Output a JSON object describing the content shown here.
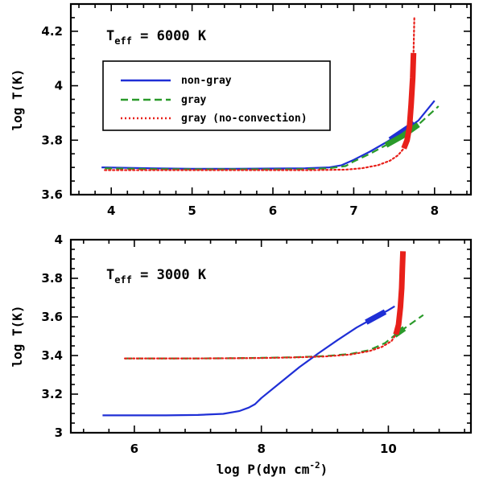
{
  "chart_data": [
    {
      "type": "line",
      "panel": "top",
      "title_main": "T",
      "title_sub": "eff",
      "title_rest": " = 6000 K",
      "xlabel": "",
      "ylabel": "log T(K)",
      "xlim": [
        3.5,
        8.45
      ],
      "ylim": [
        3.6,
        4.3
      ],
      "xticks": [
        4,
        5,
        6,
        7,
        8
      ],
      "yticks": [
        3.6,
        3.8,
        4,
        4.2
      ],
      "yticklabels": [
        "3.6",
        "3.8",
        "4",
        "4.2"
      ],
      "legend": {
        "position": "upper-left",
        "entries": [
          {
            "label": "non-gray",
            "color": "#1f2fd6",
            "style": "solid"
          },
          {
            "label": "gray",
            "color": "#2a9a2a",
            "style": "dashed"
          },
          {
            "label": "gray (no-convection)",
            "color": "#e8201a",
            "style": "dotted"
          }
        ]
      },
      "series": [
        {
          "name": "non-gray",
          "color": "#1f2fd6",
          "style": "solid",
          "x": [
            3.88,
            4.5,
            5.0,
            5.5,
            6.0,
            6.4,
            6.7,
            6.85,
            7.0,
            7.2,
            7.4,
            7.6,
            7.8,
            8.0
          ],
          "y": [
            3.7,
            3.697,
            3.695,
            3.695,
            3.696,
            3.697,
            3.7,
            3.708,
            3.728,
            3.758,
            3.792,
            3.83,
            3.872,
            3.945
          ],
          "thick_range": [
            7.45,
            7.75
          ]
        },
        {
          "name": "gray",
          "color": "#2a9a2a",
          "style": "dashed",
          "x": [
            3.92,
            4.5,
            5.0,
            5.5,
            6.0,
            6.4,
            6.7,
            6.9,
            7.0,
            7.2,
            7.4,
            7.6,
            7.8,
            8.05
          ],
          "y": [
            3.697,
            3.694,
            3.693,
            3.693,
            3.693,
            3.694,
            3.697,
            3.705,
            3.722,
            3.75,
            3.782,
            3.815,
            3.857,
            3.925
          ],
          "thick_range": [
            7.4,
            7.9
          ]
        },
        {
          "name": "gray (no-convection)",
          "color": "#e8201a",
          "style": "dotted",
          "x": [
            3.92,
            4.5,
            5.0,
            5.5,
            6.0,
            6.5,
            6.9,
            7.1,
            7.3,
            7.45,
            7.55,
            7.62,
            7.66,
            7.69,
            7.71,
            7.73,
            7.74,
            7.75
          ],
          "y": [
            3.69,
            3.69,
            3.69,
            3.69,
            3.69,
            3.69,
            3.692,
            3.697,
            3.708,
            3.725,
            3.745,
            3.77,
            3.8,
            3.85,
            3.93,
            4.03,
            4.12,
            4.25
          ],
          "thick_range": [
            7.62,
            7.74
          ]
        }
      ]
    },
    {
      "type": "line",
      "panel": "bottom",
      "title_main": "T",
      "title_sub": "eff",
      "title_rest": " = 3000 K",
      "xlabel_main": "log P(dyn cm",
      "xlabel_sup": "-2",
      "xlabel_end": ")",
      "ylabel": "log T(K)",
      "xlim": [
        5.0,
        11.3
      ],
      "ylim": [
        3.0,
        4.0
      ],
      "xticks": [
        6,
        8,
        10
      ],
      "yticks": [
        3,
        3.2,
        3.4,
        3.6,
        3.8,
        4
      ],
      "yticklabels": [
        "3",
        "3.2",
        "3.4",
        "3.6",
        "3.8",
        "4"
      ],
      "series": [
        {
          "name": "non-gray",
          "color": "#1f2fd6",
          "style": "solid",
          "x": [
            5.5,
            6.0,
            6.5,
            7.0,
            7.4,
            7.65,
            7.8,
            7.9,
            8.0,
            8.3,
            8.6,
            8.9,
            9.2,
            9.5,
            9.8,
            10.0,
            10.1
          ],
          "y": [
            3.09,
            3.09,
            3.09,
            3.092,
            3.098,
            3.112,
            3.13,
            3.148,
            3.18,
            3.26,
            3.34,
            3.412,
            3.48,
            3.545,
            3.6,
            3.635,
            3.655
          ],
          "thick_range": [
            9.65,
            9.95
          ]
        },
        {
          "name": "gray",
          "color": "#2a9a2a",
          "style": "dashed",
          "x": [
            5.85,
            6.5,
            7.0,
            7.5,
            8.0,
            8.5,
            9.0,
            9.4,
            9.7,
            9.95,
            10.1,
            10.25,
            10.4,
            10.55
          ],
          "y": [
            3.385,
            3.385,
            3.385,
            3.386,
            3.388,
            3.391,
            3.397,
            3.408,
            3.428,
            3.465,
            3.505,
            3.54,
            3.575,
            3.61
          ],
          "thick_range": [
            10.0,
            10.35
          ]
        },
        {
          "name": "gray (no-convection)",
          "color": "#e8201a",
          "style": "dotted",
          "x": [
            5.85,
            6.5,
            7.0,
            7.5,
            8.0,
            8.5,
            9.0,
            9.4,
            9.7,
            9.9,
            10.05,
            10.12,
            10.16,
            10.19,
            10.21,
            10.22,
            10.23
          ],
          "y": [
            3.385,
            3.385,
            3.385,
            3.386,
            3.387,
            3.39,
            3.395,
            3.405,
            3.423,
            3.445,
            3.475,
            3.51,
            3.56,
            3.65,
            3.75,
            3.85,
            3.94
          ],
          "thick_range": [
            10.12,
            10.23
          ]
        }
      ]
    }
  ]
}
